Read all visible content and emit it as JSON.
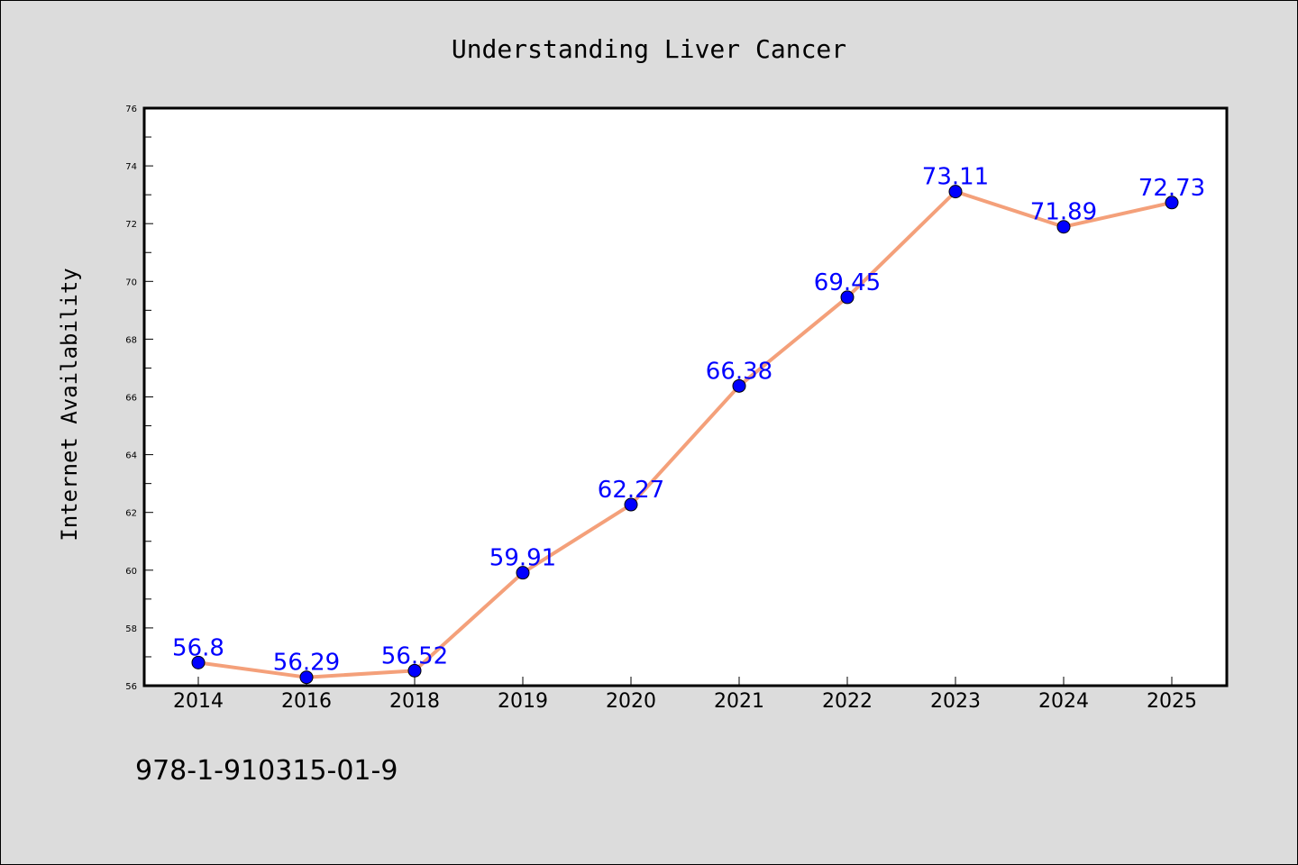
{
  "chart_data": {
    "type": "line",
    "title": "Understanding Liver Cancer",
    "xlabel": "",
    "ylabel": "Internet Availability",
    "categories": [
      "2014",
      "2016",
      "2018",
      "2019",
      "2020",
      "2021",
      "2022",
      "2023",
      "2024",
      "2025"
    ],
    "series": [
      {
        "values": [
          56.8,
          56.29,
          56.52,
          59.91,
          62.27,
          66.38,
          69.45,
          73.11,
          71.89,
          72.73
        ]
      }
    ],
    "data_labels": [
      "56.8",
      "56.29",
      "56.52",
      "59.91",
      "62.27",
      "66.38",
      "69.45",
      "73.11",
      "71.89",
      "72.73"
    ],
    "ylim": [
      56,
      76
    ],
    "yticks": [
      "56",
      "58",
      "60",
      "62",
      "64",
      "66",
      "68",
      "70",
      "72",
      "74",
      "76"
    ],
    "grid": false,
    "line_color": "#f4a07a",
    "marker_color": "#0000ff",
    "label_color": "#0000ff",
    "background_color": "#dcdcdc",
    "plot_background_color": "#ffffff"
  },
  "footer": {
    "isbn": "978-1-910315-01-9"
  }
}
